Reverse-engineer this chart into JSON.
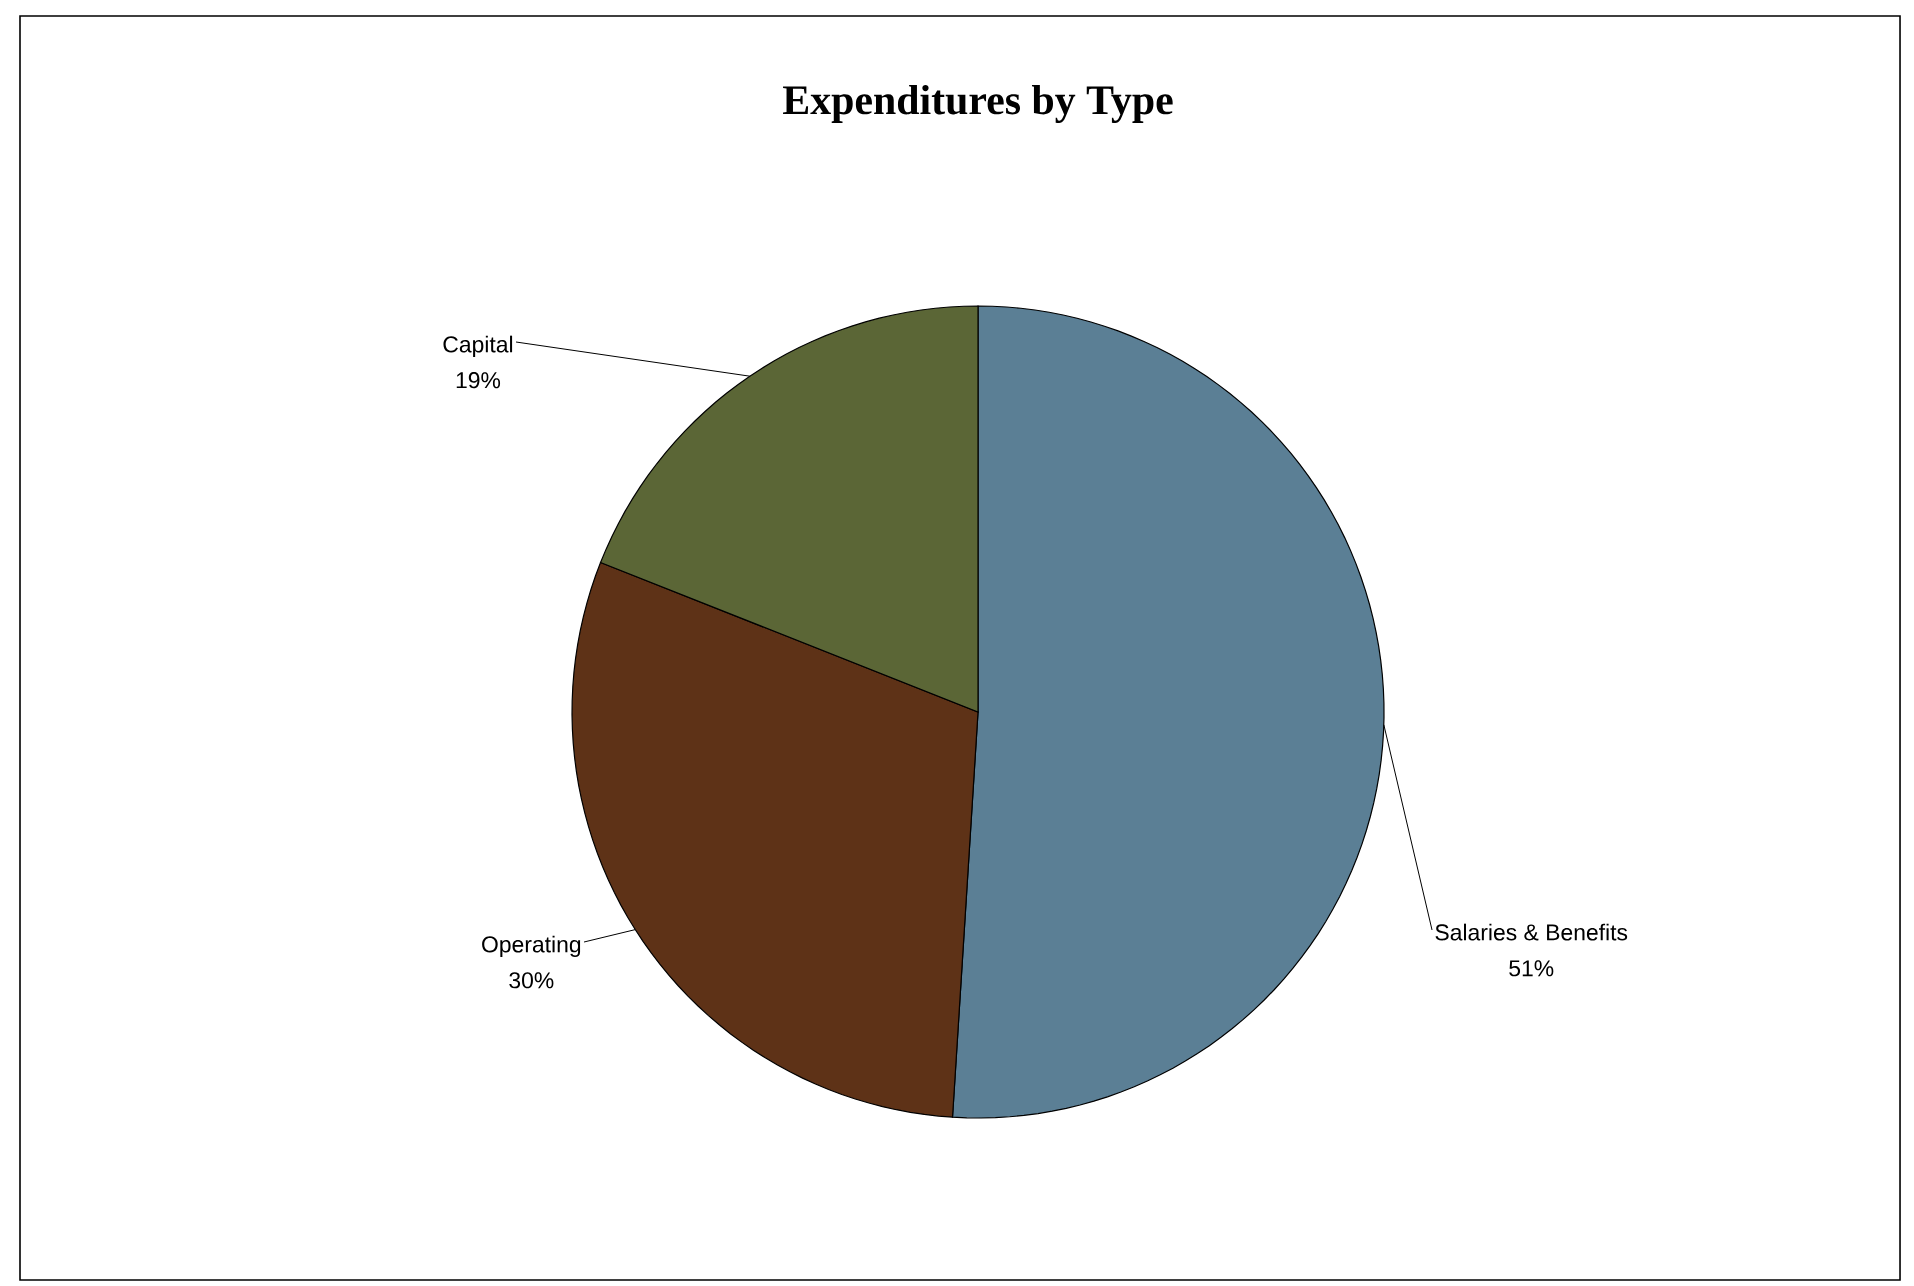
{
  "chart_data": {
    "type": "pie",
    "title": "Expenditures by Type",
    "categories": [
      "Salaries & Benefits",
      "Operating",
      "Capital"
    ],
    "values": [
      51,
      30,
      19
    ],
    "value_labels": [
      "51%",
      "30%",
      "19%"
    ],
    "colors": [
      "#5b7f95",
      "#5e3217",
      "#5b6636"
    ]
  }
}
